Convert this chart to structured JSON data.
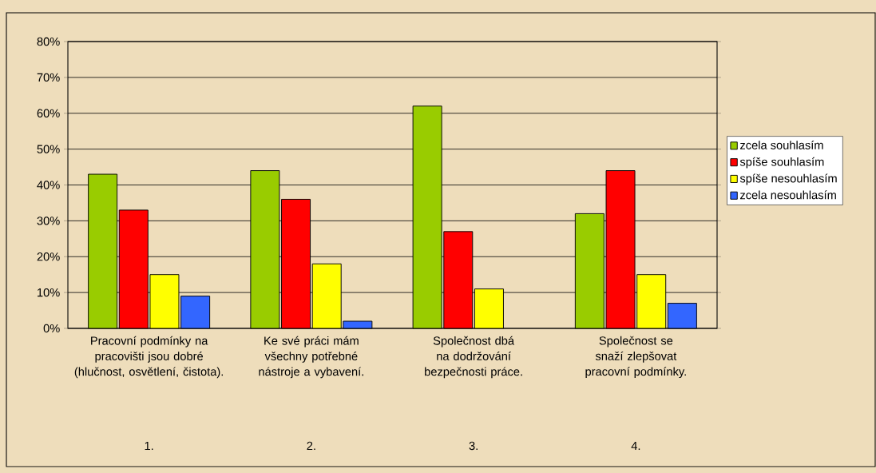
{
  "chart_data": {
    "type": "bar",
    "categories": [
      "Pracovní podmínky na pracovišti jsou dobré (hlučnost, osvětlení, čistota).",
      "Ke své práci mám všechny potřebné nástroje a vybavení.",
      "Společnost dbá na dodržování bezpečnosti práce.",
      "Společnost se snaží zlepšovat pracovní podmínky."
    ],
    "series": [
      {
        "name": "zcela souhlasím",
        "color": "#99cc00",
        "values": [
          43,
          44,
          62,
          32
        ]
      },
      {
        "name": "spíše souhlasím",
        "color": "#ff0000",
        "values": [
          33,
          36,
          27,
          44
        ]
      },
      {
        "name": "spíše nesouhlasím",
        "color": "#ffff00",
        "values": [
          15,
          18,
          11,
          15
        ]
      },
      {
        "name": "zcela nesouhlasím",
        "color": "#3366ff",
        "values": [
          9,
          2,
          null,
          7
        ]
      }
    ],
    "ylim": [
      0,
      80
    ],
    "yticks": [
      {
        "value": 0,
        "label": "0%"
      },
      {
        "value": 10,
        "label": "10%"
      },
      {
        "value": 20,
        "label": "20%"
      },
      {
        "value": 30,
        "label": "30%"
      },
      {
        "value": 40,
        "label": "40%"
      },
      {
        "value": 50,
        "label": "50%"
      },
      {
        "value": 60,
        "label": "60%"
      },
      {
        "value": 70,
        "label": "70%"
      },
      {
        "value": 80,
        "label": "80%"
      }
    ],
    "grid": "y",
    "legend": "right",
    "annotations": [
      "1.",
      "2.",
      "3.",
      "4."
    ]
  }
}
